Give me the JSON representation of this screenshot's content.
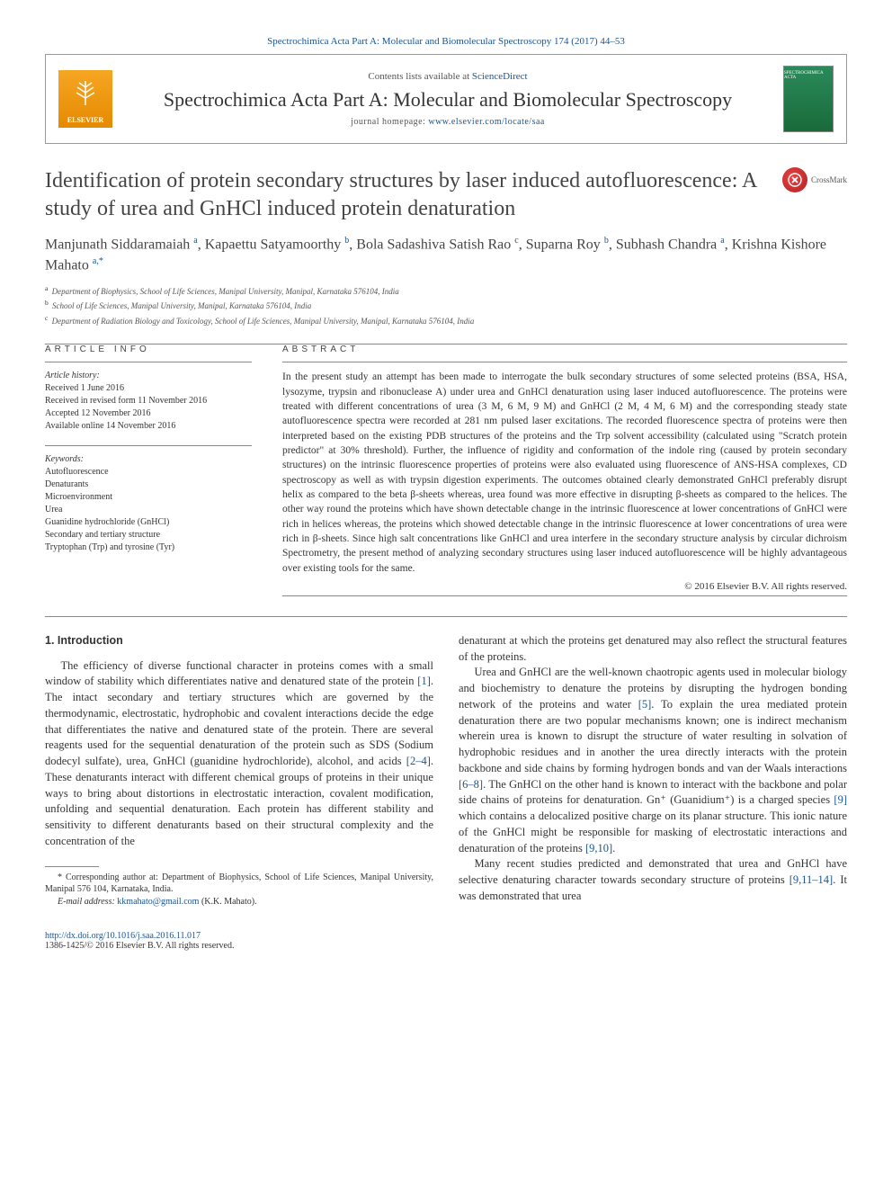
{
  "top_link": "Spectrochimica Acta Part A: Molecular and Biomolecular Spectroscopy 174 (2017) 44–53",
  "header": {
    "contents_prefix": "Contents lists available at ",
    "contents_link": "ScienceDirect",
    "journal_name": "Spectrochimica Acta Part A: Molecular and Biomolecular Spectroscopy",
    "home_prefix": "journal homepage: ",
    "home_url": "www.elsevier.com/locate/saa",
    "elsevier_label": "ELSEVIER",
    "cover_label": "SPECTROCHIMICA ACTA"
  },
  "crossmark_label": "CrossMark",
  "article_title": "Identification of protein secondary structures by laser induced autofluorescence: A study of urea and GnHCl induced protein denaturation",
  "authors_html": "Manjunath Siddaramaiah <sup>a</sup>, Kapaettu Satyamoorthy <sup>b</sup>, Bola Sadashiva Satish Rao <sup>c</sup>, Suparna Roy <sup>b</sup>, Subhash Chandra <sup>a</sup>, Krishna Kishore Mahato <sup>a,*</sup>",
  "affiliations": [
    {
      "sup": "a",
      "text": "Department of Biophysics, School of Life Sciences, Manipal University, Manipal, Karnataka 576104, India"
    },
    {
      "sup": "b",
      "text": "School of Life Sciences, Manipal University, Manipal, Karnataka 576104, India"
    },
    {
      "sup": "c",
      "text": "Department of Radiation Biology and Toxicology, School of Life Sciences, Manipal University, Manipal, Karnataka 576104, India"
    }
  ],
  "article_info_head": "article info",
  "abstract_head": "abstract",
  "history": {
    "label": "Article history:",
    "lines": [
      "Received 1 June 2016",
      "Received in revised form 11 November 2016",
      "Accepted 12 November 2016",
      "Available online 14 November 2016"
    ]
  },
  "keywords": {
    "label": "Keywords:",
    "items": [
      "Autofluorescence",
      "Denaturants",
      "Microenvironment",
      "Urea",
      "Guanidine hydrochloride (GnHCl)",
      "Secondary and tertiary structure",
      "Tryptophan (Trp) and tyrosine (Tyr)"
    ]
  },
  "abstract_text": "In the present study an attempt has been made to interrogate the bulk secondary structures of some selected proteins (BSA, HSA, lysozyme, trypsin and ribonuclease A) under urea and GnHCl denaturation using laser induced autofluorescence. The proteins were treated with different concentrations of urea (3 M, 6 M, 9 M) and GnHCl (2 M, 4 M, 6 M) and the corresponding steady state autofluorescence spectra were recorded at 281 nm pulsed laser excitations. The recorded fluorescence spectra of proteins were then interpreted based on the existing PDB structures of the proteins and the Trp solvent accessibility (calculated using \"Scratch protein predictor\" at 30% threshold). Further, the influence of rigidity and conformation of the indole ring (caused by protein secondary structures) on the intrinsic fluorescence properties of proteins were also evaluated using fluorescence of ANS-HSA complexes, CD spectroscopy as well as with trypsin digestion experiments. The outcomes obtained clearly demonstrated GnHCl preferably disrupt helix as compared to the beta β-sheets whereas, urea found was more effective in disrupting β-sheets as compared to the helices. The other way round the proteins which have shown detectable change in the intrinsic fluorescence at lower concentrations of GnHCl were rich in helices whereas, the proteins which showed detectable change in the intrinsic fluorescence at lower concentrations of urea were rich in β-sheets. Since high salt concentrations like GnHCl and urea interfere in the secondary structure analysis by circular dichroism Spectrometry, the present method of analyzing secondary structures using laser induced autofluorescence will be highly advantageous over existing tools for the same.",
  "copyright": "© 2016 Elsevier B.V. All rights reserved.",
  "intro_head": "1. Introduction",
  "body_left_p1": "The efficiency of diverse functional character in proteins comes with a small window of stability which differentiates native and denatured state of the protein [1]. The intact secondary and tertiary structures which are governed by the thermodynamic, electrostatic, hydrophobic and covalent interactions decide the edge that differentiates the native and denatured state of the protein. There are several reagents used for the sequential denaturation of the protein such as SDS (Sodium dodecyl sulfate), urea, GnHCl (guanidine hydrochloride), alcohol, and acids [2–4]. These denaturants interact with different chemical groups of proteins in their unique ways to bring about distortions in electrostatic interaction, covalent modification, unfolding and sequential denaturation. Each protein has different stability and sensitivity to different denaturants based on their structural complexity and the concentration of the",
  "body_right_p1": "denaturant at which the proteins get denatured may also reflect the structural features of the proteins.",
  "body_right_p2": "Urea and GnHCl are the well-known chaotropic agents used in molecular biology and biochemistry to denature the proteins by disrupting the hydrogen bonding network of the proteins and water [5]. To explain the urea mediated protein denaturation there are two popular mechanisms known; one is indirect mechanism wherein urea is known to disrupt the structure of water resulting in solvation of hydrophobic residues and in another the urea directly interacts with the protein backbone and side chains by forming hydrogen bonds and van der Waals interactions [6–8]. The GnHCl on the other hand is known to interact with the backbone and polar side chains of proteins for denaturation. Gn⁺ (Guanidium⁺) is a charged species [9] which contains a delocalized positive charge on its planar structure. This ionic nature of the GnHCl might be responsible for masking of electrostatic interactions and denaturation of the proteins [9,10].",
  "body_right_p3": "Many recent studies predicted and demonstrated that urea and GnHCl have selective denaturing character towards secondary structure of proteins [9,11–14]. It was demonstrated that urea",
  "corresponding": {
    "star": "*",
    "text": "Corresponding author at: Department of Biophysics, School of Life Sciences, Manipal University, Manipal 576 104, Karnataka, India.",
    "email_label": "E-mail address:",
    "email": "kkmahato@gmail.com",
    "email_suffix": "(K.K. Mahato)."
  },
  "footer": {
    "doi": "http://dx.doi.org/10.1016/j.saa.2016.11.017",
    "issn_line": "1386-1425/© 2016 Elsevier B.V. All rights reserved."
  },
  "refs": {
    "r1": "[1]",
    "r2_4": "[2–4]",
    "r5": "[5]",
    "r6_8": "[6–8]",
    "r9": "[9]",
    "r9_10": "[9,10]",
    "r9_11_14": "[9,11–14]"
  }
}
